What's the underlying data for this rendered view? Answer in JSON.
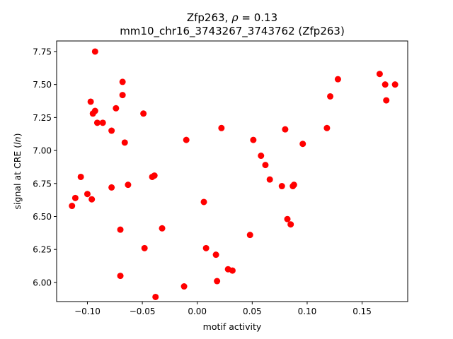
{
  "chart_data": {
    "type": "scatter",
    "title_line1_prefix": "Zfp263, ",
    "title_line1_rho": "ρ",
    "title_line1_suffix": " = 0.13",
    "title_line2": "mm10_chr16_3743267_3743762 (Zfp263)",
    "xlabel": "motif activity",
    "ylabel_prefix": "signal at CRE (",
    "ylabel_italic": "ln",
    "ylabel_suffix": ")",
    "xlim": [
      -0.128,
      0.1915
    ],
    "ylim": [
      5.855,
      7.83
    ],
    "xticks": [
      -0.1,
      -0.05,
      0.0,
      0.05,
      0.1,
      0.15
    ],
    "xtick_labels": [
      "−0.10",
      "−0.05",
      "0.00",
      "0.05",
      "0.10",
      "0.15"
    ],
    "yticks": [
      6.0,
      6.25,
      6.5,
      6.75,
      7.0,
      7.25,
      7.5,
      7.75
    ],
    "ytick_labels": [
      "6.00",
      "6.25",
      "6.50",
      "6.75",
      "7.00",
      "7.25",
      "7.50",
      "7.75"
    ],
    "grid": false,
    "marker_color": "#ff0000",
    "points": [
      {
        "x": -0.093,
        "y": 7.75
      },
      {
        "x": -0.068,
        "y": 7.52
      },
      {
        "x": -0.068,
        "y": 7.42
      },
      {
        "x": -0.097,
        "y": 7.37
      },
      {
        "x": -0.074,
        "y": 7.32
      },
      {
        "x": -0.093,
        "y": 7.3
      },
      {
        "x": -0.095,
        "y": 7.28
      },
      {
        "x": -0.049,
        "y": 7.28
      },
      {
        "x": -0.091,
        "y": 7.21
      },
      {
        "x": -0.086,
        "y": 7.21
      },
      {
        "x": -0.078,
        "y": 7.15
      },
      {
        "x": -0.066,
        "y": 7.06
      },
      {
        "x": -0.106,
        "y": 6.8
      },
      {
        "x": -0.041,
        "y": 6.8
      },
      {
        "x": -0.039,
        "y": 6.81
      },
      {
        "x": -0.063,
        "y": 6.74
      },
      {
        "x": -0.078,
        "y": 6.72
      },
      {
        "x": -0.1,
        "y": 6.67
      },
      {
        "x": -0.111,
        "y": 6.64
      },
      {
        "x": -0.096,
        "y": 6.63
      },
      {
        "x": -0.114,
        "y": 6.58
      },
      {
        "x": -0.07,
        "y": 6.4
      },
      {
        "x": -0.032,
        "y": 6.41
      },
      {
        "x": -0.048,
        "y": 6.26
      },
      {
        "x": -0.07,
        "y": 6.05
      },
      {
        "x": -0.038,
        "y": 5.89
      },
      {
        "x": -0.012,
        "y": 5.97
      },
      {
        "x": -0.01,
        "y": 7.08
      },
      {
        "x": 0.022,
        "y": 7.17
      },
      {
        "x": 0.051,
        "y": 7.08
      },
      {
        "x": 0.058,
        "y": 6.96
      },
      {
        "x": 0.062,
        "y": 6.89
      },
      {
        "x": 0.066,
        "y": 6.78
      },
      {
        "x": 0.077,
        "y": 6.73
      },
      {
        "x": 0.088,
        "y": 6.74
      },
      {
        "x": 0.087,
        "y": 6.73
      },
      {
        "x": 0.08,
        "y": 7.16
      },
      {
        "x": 0.006,
        "y": 6.61
      },
      {
        "x": 0.082,
        "y": 6.48
      },
      {
        "x": 0.085,
        "y": 6.44
      },
      {
        "x": 0.048,
        "y": 6.36
      },
      {
        "x": 0.008,
        "y": 6.26
      },
      {
        "x": 0.017,
        "y": 6.21
      },
      {
        "x": 0.028,
        "y": 6.1
      },
      {
        "x": 0.032,
        "y": 6.09
      },
      {
        "x": 0.018,
        "y": 6.01
      },
      {
        "x": 0.096,
        "y": 7.05
      },
      {
        "x": 0.118,
        "y": 7.17
      },
      {
        "x": 0.121,
        "y": 7.41
      },
      {
        "x": 0.128,
        "y": 7.54
      },
      {
        "x": 0.166,
        "y": 7.58
      },
      {
        "x": 0.171,
        "y": 7.5
      },
      {
        "x": 0.172,
        "y": 7.38
      },
      {
        "x": 0.18,
        "y": 7.5
      }
    ]
  }
}
